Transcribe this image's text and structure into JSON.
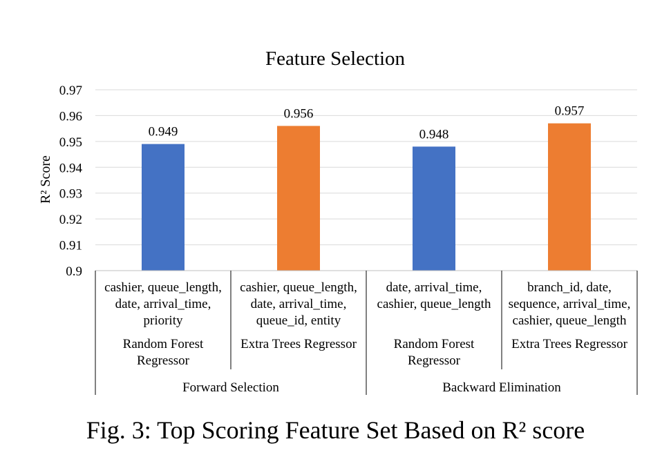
{
  "chart_data": {
    "type": "bar",
    "title": "Feature Selection",
    "ylabel": "R² Score",
    "ylim": [
      0.9,
      0.97
    ],
    "yticks": [
      "0.9",
      "0.91",
      "0.92",
      "0.93",
      "0.94",
      "0.95",
      "0.96",
      "0.97"
    ],
    "grid": true,
    "categories": [
      {
        "features": [
          "cashier, queue_length,",
          "date, arrival_time,",
          "priority"
        ],
        "model": [
          "Random Forest",
          "Regressor"
        ],
        "group": "Forward Selection",
        "value": 0.949,
        "label": "0.949",
        "color": "#4472C4"
      },
      {
        "features": [
          "cashier, queue_length,",
          "date, arrival_time,",
          "queue_id, entity"
        ],
        "model": [
          "Extra Trees Regressor"
        ],
        "group": "Forward Selection",
        "value": 0.956,
        "label": "0.956",
        "color": "#ED7D31"
      },
      {
        "features": [
          "date, arrival_time,",
          "cashier, queue_length"
        ],
        "model": [
          "Random Forest",
          "Regressor"
        ],
        "group": "Backward Elimination",
        "value": 0.948,
        "label": "0.948",
        "color": "#4472C4"
      },
      {
        "features": [
          "branch_id, date,",
          "sequence, arrival_time,",
          "cashier, queue_length"
        ],
        "model": [
          "Extra Trees Regressor"
        ],
        "group": "Backward Elimination",
        "value": 0.957,
        "label": "0.957",
        "color": "#ED7D31"
      }
    ],
    "groups": [
      "Forward Selection",
      "Backward Elimination"
    ]
  },
  "caption": "Fig. 3: Top Scoring Feature Set Based on R² score"
}
